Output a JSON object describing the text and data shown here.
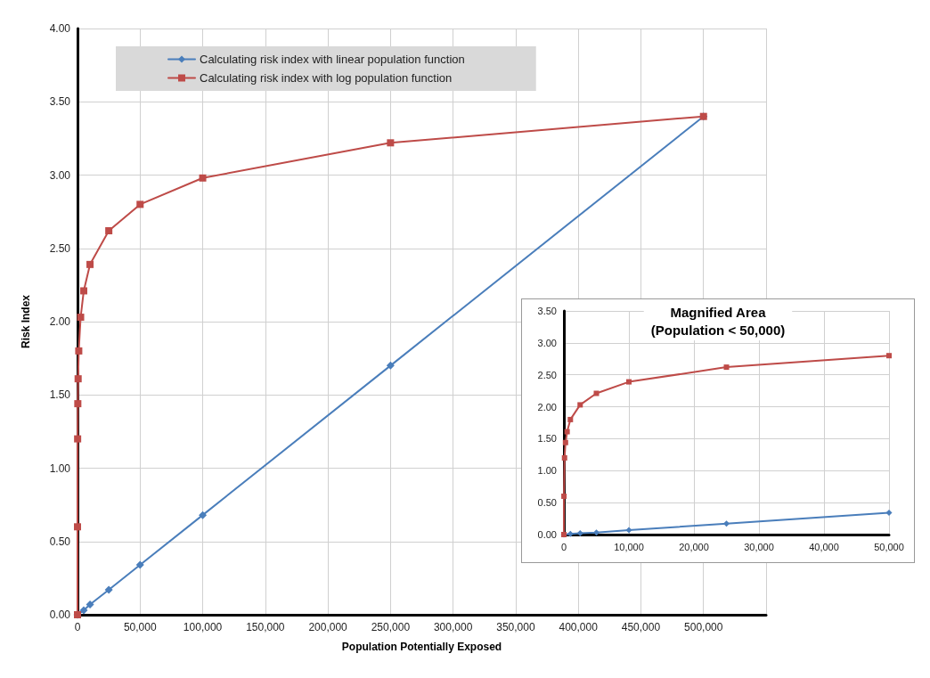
{
  "chart_data": [
    {
      "type": "line",
      "xlabel": "Population Potentially Exposed",
      "ylabel": "Risk Index",
      "xlim": [
        0,
        550000
      ],
      "ylim": [
        0,
        4
      ],
      "xticks": [
        0,
        {
          "value": 50000,
          "label": "50,000"
        },
        {
          "value": 100000,
          "label": "100,000"
        },
        {
          "value": 150000,
          "label": "150,000"
        },
        {
          "value": 200000,
          "label": "200,000"
        },
        {
          "value": 250000,
          "label": "250,000"
        },
        {
          "value": 300000,
          "label": "300,000"
        },
        {
          "value": 350000,
          "label": "350,000"
        },
        {
          "value": 400000,
          "label": "400,000"
        },
        {
          "value": 450000,
          "label": "450,000"
        },
        {
          "value": 500000,
          "label": "500,000"
        },
        {
          "value": 550000,
          "label": null
        }
      ],
      "yticks": [
        {
          "value": 0,
          "label": "0.00"
        },
        {
          "value": 0.5,
          "label": "0.50"
        },
        {
          "value": 1,
          "label": "1.00"
        },
        {
          "value": 1.5,
          "label": "1.50"
        },
        {
          "value": 2,
          "label": "2.00"
        },
        {
          "value": 2.5,
          "label": "2.50"
        },
        {
          "value": 3,
          "label": "3.00"
        },
        {
          "value": 3.5,
          "label": "3.50"
        },
        {
          "value": 4,
          "label": "4.00"
        }
      ],
      "grid": true,
      "legend": "top left",
      "line_style": "solid",
      "series": [
        {
          "name": "Calculating risk index with linear population function",
          "color": "#4a7ebb",
          "marker": "diamond",
          "x": [
            0,
            5000,
            10000,
            25000,
            50000,
            100000,
            250000,
            500000
          ],
          "values": [
            0,
            0.03,
            0.07,
            0.17,
            0.34,
            0.68,
            1.7,
            3.4
          ]
        },
        {
          "name": "Calculating risk index with log population function",
          "color": "#be4b48",
          "marker": "square",
          "x": [
            0,
            10,
            100,
            250,
            500,
            1000,
            2500,
            5000,
            10000,
            25000,
            50000,
            100000,
            250000,
            500000
          ],
          "values": [
            0,
            0.6,
            1.2,
            1.44,
            1.61,
            1.8,
            2.03,
            2.21,
            2.39,
            2.62,
            2.8,
            2.98,
            3.22,
            3.4
          ]
        }
      ]
    },
    {
      "type": "line",
      "title": "Magnified Area\n(Population < 50,000)",
      "xlim": [
        0,
        50000
      ],
      "ylim": [
        0,
        3.5
      ],
      "xticks": [
        0,
        {
          "value": 10000,
          "label": "10,000"
        },
        {
          "value": 20000,
          "label": "20,000"
        },
        {
          "value": 30000,
          "label": "30,000"
        },
        {
          "value": 40000,
          "label": "40,000"
        },
        {
          "value": 50000,
          "label": "50,000"
        }
      ],
      "yticks": [
        {
          "value": 0,
          "label": "0.00"
        },
        {
          "value": 0.5,
          "label": "0.50"
        },
        {
          "value": 1,
          "label": "1.00"
        },
        {
          "value": 1.5,
          "label": "1.50"
        },
        {
          "value": 2,
          "label": "2.00"
        },
        {
          "value": 2.5,
          "label": "2.50"
        },
        {
          "value": 3,
          "label": "3.00"
        },
        {
          "value": 3.5,
          "label": "3.50"
        }
      ],
      "grid": true,
      "line_style": "solid",
      "series": [
        {
          "color": "#4a7ebb",
          "marker": "diamond",
          "x": [
            0,
            1000,
            2500,
            5000,
            10000,
            25000,
            50000
          ],
          "values": [
            0,
            0.01,
            0.02,
            0.03,
            0.07,
            0.17,
            0.34
          ]
        },
        {
          "color": "#be4b48",
          "marker": "square",
          "x": [
            0,
            10,
            100,
            250,
            500,
            1000,
            2500,
            5000,
            10000,
            25000,
            50000
          ],
          "values": [
            0,
            0.6,
            1.2,
            1.44,
            1.61,
            1.8,
            2.03,
            2.21,
            2.39,
            2.62,
            2.8
          ]
        }
      ]
    }
  ]
}
